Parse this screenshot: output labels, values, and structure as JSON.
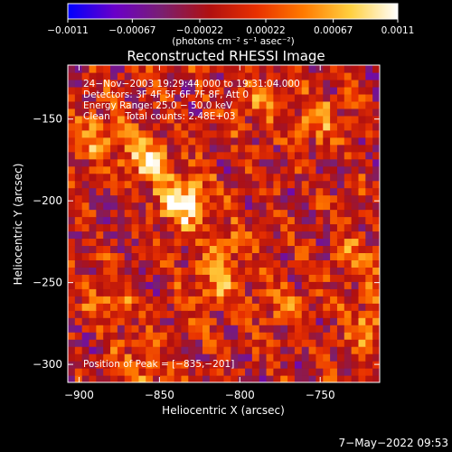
{
  "chart_data": {
    "type": "heatmap",
    "title": "Reconstructed RHESSI Image",
    "xlabel": "Heliocentric X (arcsec)",
    "ylabel": "Heliocentric Y (arcsec)",
    "xlim": [
      -907,
      -713
    ],
    "ylim": [
      -311,
      -117
    ],
    "x_ticks": [
      -900,
      -850,
      -800,
      -750
    ],
    "y_ticks": [
      -300,
      -250,
      -200,
      -150
    ],
    "x_tick_labels": [
      "−900",
      "−850",
      "−800",
      "−750"
    ],
    "y_tick_labels": [
      "−300",
      "−250",
      "−200",
      "−150"
    ],
    "colorbar": {
      "range": [
        -0.0011,
        0.0011
      ],
      "ticks": [
        -0.0011,
        -0.00067,
        -0.00022,
        0.00022,
        0.00067,
        0.0011
      ],
      "tick_labels": [
        "−0.0011",
        "−0.00067",
        "−0.00022",
        "0.00022",
        "0.00067",
        "0.0011"
      ],
      "units": "(photons cm⁻² s⁻¹ asec⁻²)",
      "colormap": [
        "#0000ff",
        "#6a00c8",
        "#7a1f70",
        "#b01010",
        "#e83000",
        "#ff7a00",
        "#ffd040",
        "#ffffff"
      ]
    },
    "annotations": {
      "time": "24−Nov−2003 19:29:44.000 to 19:31:04.000",
      "detectors": "Detectors: 3F 4F 5F 6F 7F 8F, Att 0",
      "energy": "Energy Range: 25.0 − 50.0 keV",
      "clean": "Clean     Total counts: 2.48E+03",
      "peak": "Position of Peak = [−835,−201]"
    },
    "peak_position": [
      -835,
      -201
    ],
    "sources": [
      {
        "x": -835,
        "y": -201,
        "value": 0.0011
      },
      {
        "x": -858,
        "y": -174,
        "value": 0.00085
      },
      {
        "x": -815,
        "y": -252,
        "value": 0.0006
      },
      {
        "x": -752,
        "y": -150,
        "value": 0.0006
      },
      {
        "x": -718,
        "y": -278,
        "value": 0.0006
      },
      {
        "x": -728,
        "y": -236,
        "value": 0.0005
      },
      {
        "x": -890,
        "y": -160,
        "value": 0.00055
      },
      {
        "x": -880,
        "y": -262,
        "value": 0.00045
      },
      {
        "x": -862,
        "y": -302,
        "value": 0.00045
      },
      {
        "x": -790,
        "y": -140,
        "value": 0.0004
      },
      {
        "x": -775,
        "y": -262,
        "value": 0.0004
      },
      {
        "x": -808,
        "y": -230,
        "value": 0.00035
      }
    ],
    "grid": false
  },
  "footer_date": "7−May−2022 09:53"
}
